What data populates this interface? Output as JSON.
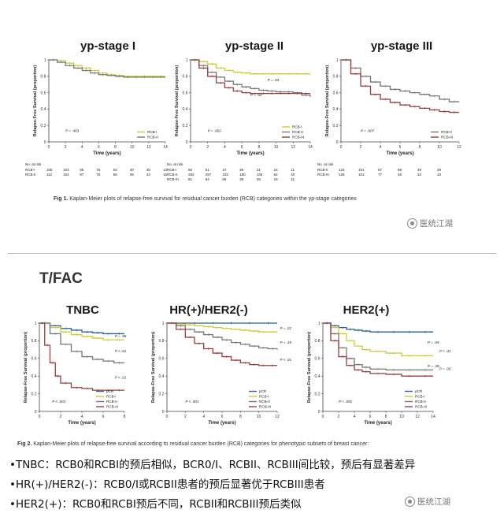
{
  "fig1": {
    "caption_prefix": "Fig 1.",
    "caption_text": "Kaplan-Meier plots of relapse-free survival for residual cancer burden (RCB) categories within the yp-stage categories"
  },
  "fig2": {
    "caption_prefix": "Fig 2.",
    "caption_text": "Kaplan-Meier plots of relapse-free survival according to residual cancer burden (RCB) categories for phenotypic subsets of breast cancer:"
  },
  "section_label": "T/FAC",
  "watermark": "医统江湖",
  "bullets": [
    "•TNBC：RCB0和RCBI的预后相似，BCR0/I、RCBII、RCBIII间比较，预后有显著差异",
    "•HR(+)/HER2(-)：RCB0/I或RCBII患者的预后显著优于RCBIII患者",
    "•HER2(+)：RCB0和RCBI预后不同，RCBII和RCBIII预后类似"
  ],
  "chart_data": [
    {
      "type": "line",
      "title": "yp-stage I",
      "xlabel": "Time (years)",
      "ylabel": "Relapse-Free Survival (proportion)",
      "xlim": [
        0,
        14
      ],
      "ylim": [
        0,
        1
      ],
      "xticks": [
        0,
        2,
        4,
        6,
        8,
        10,
        12,
        14
      ],
      "yticks": [
        0,
        0.2,
        0.4,
        0.6,
        0.8,
        1
      ],
      "pvalues": [
        {
          "label": "P = .403",
          "x": 2,
          "y": 0.12
        }
      ],
      "legend_position": "bottom-right",
      "series": [
        {
          "name": "RCB-I",
          "color": "#cccc33",
          "x": [
            0,
            1,
            2,
            3,
            4,
            5,
            6,
            7,
            8,
            9,
            10,
            11,
            12,
            13,
            14
          ],
          "y": [
            1,
            0.99,
            0.96,
            0.93,
            0.9,
            0.87,
            0.84,
            0.82,
            0.81,
            0.8,
            0.8,
            0.8,
            0.8,
            0.8,
            0.8
          ]
        },
        {
          "name": "RCB-II",
          "color": "#777777",
          "x": [
            0,
            1,
            2,
            3,
            4,
            5,
            6,
            7,
            8,
            9,
            10,
            11,
            12,
            13,
            14
          ],
          "y": [
            1,
            0.97,
            0.93,
            0.9,
            0.87,
            0.84,
            0.82,
            0.81,
            0.8,
            0.79,
            0.79,
            0.79,
            0.79,
            0.79,
            0.79
          ]
        }
      ],
      "risk_table": {
        "title": "No. at risk",
        "times": [
          0,
          2,
          4,
          6,
          8,
          10,
          12,
          14
        ],
        "rows": [
          {
            "label": "RCB-I",
            "values": [
              "106",
              "103",
              "96",
              "76",
              "53",
              "40",
              "30",
              "13"
            ]
          },
          {
            "label": "RCB-II",
            "values": [
              "112",
              "104",
              "97",
              "76",
              "58",
              "39",
              "24",
              "16"
            ]
          }
        ]
      }
    },
    {
      "type": "line",
      "title": "yp-stage II",
      "xlabel": "Time (years)",
      "ylabel": "Relapse-Free Survival (proportion)",
      "xlim": [
        0,
        14
      ],
      "ylim": [
        0,
        1
      ],
      "xticks": [
        0,
        2,
        4,
        6,
        8,
        10,
        12,
        14
      ],
      "yticks": [
        0,
        0.2,
        0.4,
        0.6,
        0.8,
        1
      ],
      "pvalues": [
        {
          "label": "P = .002",
          "x": 2,
          "y": 0.12
        },
        {
          "label": "P = .03",
          "x": 9,
          "y": 0.74
        },
        {
          "label": "P = .02",
          "x": 7,
          "y": 0.56
        }
      ],
      "legend_position": "bottom-right",
      "series": [
        {
          "name": "RCB-I",
          "color": "#cccc33",
          "x": [
            0,
            1,
            2,
            3,
            4,
            5,
            6,
            7,
            8,
            9,
            10,
            11,
            12,
            13,
            14
          ],
          "y": [
            1,
            0.98,
            0.95,
            0.9,
            0.87,
            0.85,
            0.84,
            0.83,
            0.83,
            0.83,
            0.83,
            0.83,
            0.83,
            0.83,
            0.83
          ]
        },
        {
          "name": "RCB-II",
          "color": "#777777",
          "x": [
            0,
            1,
            2,
            3,
            4,
            5,
            6,
            7,
            8,
            9,
            10,
            11,
            12,
            13,
            14
          ],
          "y": [
            1,
            0.93,
            0.85,
            0.79,
            0.74,
            0.7,
            0.67,
            0.65,
            0.63,
            0.62,
            0.61,
            0.61,
            0.6,
            0.57,
            0.55
          ]
        },
        {
          "name": "RCB-III",
          "color": "#9b3d3d",
          "x": [
            0,
            1,
            2,
            3,
            4,
            5,
            6,
            7,
            8,
            9,
            10,
            11,
            12,
            13,
            14
          ],
          "y": [
            1,
            0.9,
            0.8,
            0.72,
            0.66,
            0.62,
            0.6,
            0.59,
            0.59,
            0.59,
            0.59,
            0.59,
            0.59,
            0.59,
            0.59
          ]
        }
      ],
      "risk_table": {
        "title": "No. at risk",
        "times": [
          0,
          2,
          4,
          6,
          8,
          10,
          12,
          14
        ],
        "rows": [
          {
            "label": "RCB-I",
            "values": [
              "55",
              "51",
              "47",
              "36",
              "21",
              "16",
              "11",
              ""
            ]
          },
          {
            "label": "RCB-II",
            "values": [
              "292",
              "257",
              "232",
              "180",
              "105",
              "62",
              "40",
              ""
            ]
          },
          {
            "label": "RCB-III",
            "values": [
              "81",
              "64",
              "58",
              "39",
              "28",
              "19",
              "11",
              ""
            ]
          }
        ]
      }
    },
    {
      "type": "line",
      "title": "yp-stage III",
      "xlabel": "Time (years)",
      "ylabel": "Relapse-Free Survival (proportion)",
      "xlim": [
        0,
        12
      ],
      "ylim": [
        0,
        1
      ],
      "xticks": [
        0,
        2,
        4,
        6,
        8,
        10,
        12
      ],
      "yticks": [
        0,
        0.2,
        0.4,
        0.6,
        0.8,
        1
      ],
      "pvalues": [
        {
          "label": "P = .007",
          "x": 2,
          "y": 0.12
        }
      ],
      "legend_position": "bottom-right",
      "series": [
        {
          "name": "RCB-II",
          "color": "#777777",
          "x": [
            0,
            1,
            2,
            3,
            4,
            5,
            6,
            7,
            8,
            9,
            10,
            11,
            12
          ],
          "y": [
            1,
            0.9,
            0.8,
            0.73,
            0.68,
            0.64,
            0.62,
            0.6,
            0.58,
            0.56,
            0.52,
            0.49,
            0.49
          ]
        },
        {
          "name": "RCB-III",
          "color": "#9b3d3d",
          "x": [
            0,
            1,
            2,
            3,
            4,
            5,
            6,
            7,
            8,
            9,
            10,
            11,
            12
          ],
          "y": [
            1,
            0.83,
            0.68,
            0.58,
            0.52,
            0.48,
            0.45,
            0.43,
            0.41,
            0.39,
            0.37,
            0.36,
            0.36
          ]
        }
      ],
      "risk_table": {
        "title": "No. at risk",
        "times": [
          0,
          2,
          4,
          6,
          8,
          10,
          12
        ],
        "rows": [
          {
            "label": "RCB-II",
            "values": [
              "124",
              "101",
              "87",
              "69",
              "49",
              "29",
              ""
            ]
          },
          {
            "label": "RCB-III",
            "values": [
              "135",
              "101",
              "77",
              "45",
              "33",
              "13",
              ""
            ]
          }
        ]
      }
    },
    {
      "type": "line",
      "title": "TNBC",
      "xlabel": "Time (years)",
      "ylabel": "Relapse-Free Survival (proportion)",
      "xlim": [
        0,
        8
      ],
      "ylim": [
        0,
        1
      ],
      "xticks": [
        0,
        2,
        4,
        6,
        8
      ],
      "yticks": [
        0,
        0.2,
        0.4,
        0.6,
        0.8,
        1
      ],
      "pvalues": [
        {
          "label": "P < .001",
          "x": 1.2,
          "y": 0.1
        },
        {
          "label": "P = .98",
          "x": 7.1,
          "y": 0.84
        },
        {
          "label": "P < .01",
          "x": 7.1,
          "y": 0.67
        },
        {
          "label": "P < .01",
          "x": 7.1,
          "y": 0.37
        }
      ],
      "legend_position": "bottom-right",
      "series": [
        {
          "name": "pCR",
          "color": "#2a5f8f",
          "x": [
            0,
            1,
            2,
            3,
            4,
            5,
            6,
            7,
            8
          ],
          "y": [
            1,
            0.97,
            0.94,
            0.92,
            0.9,
            0.89,
            0.88,
            0.88,
            0.88
          ]
        },
        {
          "name": "RCB-I",
          "color": "#cccc33",
          "x": [
            0,
            1,
            2,
            3,
            4,
            5,
            6,
            7,
            8
          ],
          "y": [
            1,
            0.95,
            0.9,
            0.87,
            0.85,
            0.83,
            0.81,
            0.81,
            0.81
          ]
        },
        {
          "name": "RCB-II",
          "color": "#777777",
          "x": [
            0,
            1,
            2,
            3,
            4,
            5,
            6,
            7,
            8
          ],
          "y": [
            1,
            0.88,
            0.76,
            0.68,
            0.62,
            0.59,
            0.57,
            0.55,
            0.55
          ]
        },
        {
          "name": "RCB-III",
          "color": "#9b3d3d",
          "x": [
            0,
            0.5,
            1,
            1.5,
            2,
            3,
            4,
            5,
            6,
            7,
            8
          ],
          "y": [
            1,
            0.75,
            0.55,
            0.4,
            0.32,
            0.27,
            0.26,
            0.24,
            0.24,
            0.24,
            0.24
          ]
        }
      ]
    },
    {
      "type": "line",
      "title": "HR(+)/HER2(-)",
      "xlabel": "Time (years)",
      "ylabel": "Relapse-Free Survival (proportion)",
      "xlim": [
        0,
        12
      ],
      "ylim": [
        0,
        1
      ],
      "xticks": [
        0,
        2,
        4,
        6,
        8,
        10,
        12
      ],
      "yticks": [
        0,
        0.2,
        0.4,
        0.6,
        0.8,
        1
      ],
      "pvalues": [
        {
          "label": "P < .001",
          "x": 2,
          "y": 0.1
        },
        {
          "label": "P = .22",
          "x": 12.3,
          "y": 0.93
        },
        {
          "label": "P = .19",
          "x": 12.3,
          "y": 0.77
        },
        {
          "label": "P < .01",
          "x": 12.3,
          "y": 0.57
        }
      ],
      "legend_position": "bottom-right",
      "series": [
        {
          "name": "pCR",
          "color": "#2a5f8f",
          "x": [
            0,
            2,
            4,
            6,
            8,
            10,
            12
          ],
          "y": [
            1,
            1,
            1,
            1,
            1,
            1,
            1
          ]
        },
        {
          "name": "RCB-I",
          "color": "#cccc33",
          "x": [
            0,
            1,
            2,
            3,
            4,
            5,
            6,
            7,
            8,
            9,
            10,
            11,
            12
          ],
          "y": [
            1,
            0.99,
            0.98,
            0.97,
            0.96,
            0.95,
            0.94,
            0.93,
            0.92,
            0.91,
            0.9,
            0.9,
            0.9
          ]
        },
        {
          "name": "RCB-II",
          "color": "#777777",
          "x": [
            0,
            1,
            2,
            3,
            4,
            5,
            6,
            7,
            8,
            9,
            10,
            11,
            12
          ],
          "y": [
            1,
            0.97,
            0.93,
            0.9,
            0.87,
            0.84,
            0.81,
            0.78,
            0.76,
            0.74,
            0.72,
            0.71,
            0.7
          ]
        },
        {
          "name": "RCB-III",
          "color": "#9b3d3d",
          "x": [
            0,
            1,
            2,
            3,
            4,
            5,
            6,
            7,
            8,
            9,
            10,
            11,
            12
          ],
          "y": [
            1,
            0.93,
            0.84,
            0.77,
            0.71,
            0.66,
            0.62,
            0.58,
            0.55,
            0.53,
            0.52,
            0.52,
            0.52
          ]
        }
      ]
    },
    {
      "type": "line",
      "title": "HER2(+)",
      "xlabel": "Time (years)",
      "ylabel": "Relapse-Free Survival (proportion)",
      "xlim": [
        0,
        14
      ],
      "ylim": [
        0,
        1
      ],
      "xticks": [
        0,
        2,
        4,
        6,
        8,
        10,
        12,
        14
      ],
      "yticks": [
        0,
        0.2,
        0.4,
        0.6,
        0.8,
        1
      ],
      "pvalues": [
        {
          "label": "P < .001",
          "x": 2,
          "y": 0.1
        },
        {
          "label": "P = .04",
          "x": 13.3,
          "y": 0.77
        },
        {
          "label": "P < .01",
          "x": 14.8,
          "y": 0.67
        },
        {
          "label": "P = .28",
          "x": 13.3,
          "y": 0.5
        },
        {
          "label": "P = .06",
          "x": 14.8,
          "y": 0.47
        }
      ],
      "legend_position": "bottom-right",
      "series": [
        {
          "name": "pCR",
          "color": "#2a5f8f",
          "x": [
            0,
            1,
            2,
            3,
            4,
            5,
            6,
            8,
            10,
            12,
            14
          ],
          "y": [
            1,
            0.97,
            0.95,
            0.93,
            0.92,
            0.91,
            0.9,
            0.9,
            0.9,
            0.9,
            0.9
          ]
        },
        {
          "name": "RCB-I",
          "color": "#cccc33",
          "x": [
            0,
            1,
            2,
            3,
            4,
            5,
            6,
            8,
            10,
            12,
            14
          ],
          "y": [
            1,
            0.95,
            0.88,
            0.8,
            0.74,
            0.7,
            0.68,
            0.66,
            0.63,
            0.63,
            0.63
          ]
        },
        {
          "name": "RCB-II",
          "color": "#777777",
          "x": [
            0,
            1,
            2,
            3,
            4,
            5,
            6,
            8,
            10,
            12,
            14
          ],
          "y": [
            1,
            0.88,
            0.72,
            0.6,
            0.53,
            0.5,
            0.48,
            0.47,
            0.47,
            0.47,
            0.47
          ]
        },
        {
          "name": "RCB-III",
          "color": "#9b3d3d",
          "x": [
            0,
            1,
            2,
            3,
            4,
            5,
            6,
            8,
            10,
            12,
            14
          ],
          "y": [
            1,
            0.8,
            0.62,
            0.52,
            0.47,
            0.45,
            0.43,
            0.42,
            0.4,
            0.4,
            0.4
          ]
        }
      ]
    }
  ]
}
